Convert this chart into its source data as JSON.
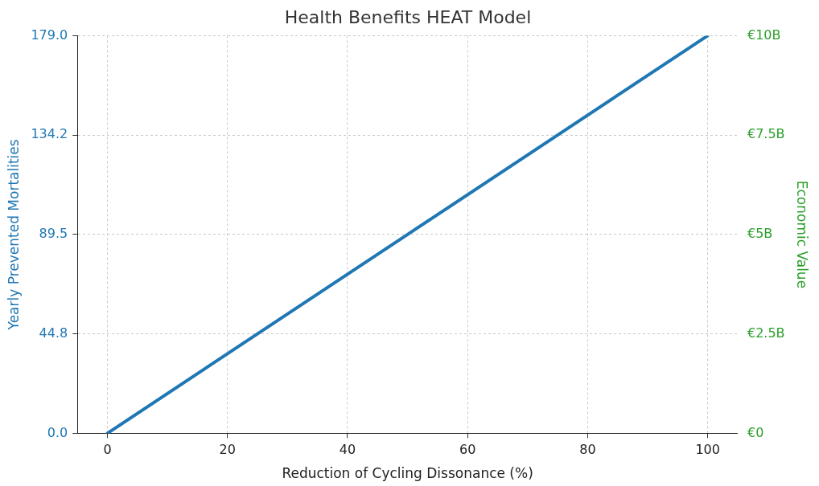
{
  "chart_data": {
    "type": "line",
    "title": "Health Benefits HEAT Model",
    "xlabel": "Reduction of Cycling Dissonance (%)",
    "ylabel": "Yearly Prevented Mortalities",
    "y2label": "Economic Value",
    "x": [
      0,
      100
    ],
    "series": [
      {
        "color": "#1f77b4",
        "values": [
          0,
          179
        ]
      }
    ],
    "xlim": [
      -5,
      105
    ],
    "xticks": [
      0,
      20,
      40,
      60,
      80,
      100
    ],
    "ylim": [
      0,
      179
    ],
    "yticks": [
      {
        "value": 0,
        "label": "0.0"
      },
      {
        "value": 44.75,
        "label": "44.8"
      },
      {
        "value": 89.5,
        "label": "89.5"
      },
      {
        "value": 134.25,
        "label": "134.2"
      },
      {
        "value": 179,
        "label": "179.0"
      }
    ],
    "y2lim": [
      0,
      10
    ],
    "y2ticks": [
      {
        "value": 0,
        "label": "€0"
      },
      {
        "value": 2.5,
        "label": "€2.5B"
      },
      {
        "value": 5,
        "label": "€5B"
      },
      {
        "value": 7.5,
        "label": "€7.5B"
      },
      {
        "value": 10,
        "label": "€10B"
      }
    ],
    "grid": true,
    "legend": false,
    "marker": "none",
    "line_style": "solid"
  }
}
